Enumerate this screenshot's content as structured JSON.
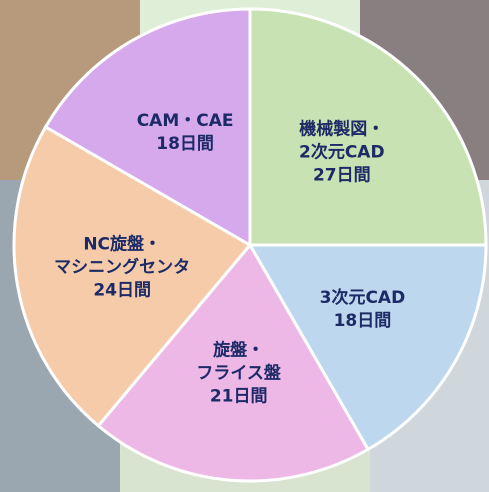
{
  "chart_data": {
    "type": "pie",
    "categories": [
      "機械製図・\n2次元CAD",
      "3次元CAD",
      "旋盤・\nフライス盤",
      "NC旋盤・\nマシニングセンタ",
      "CAM・CAE"
    ],
    "values": [
      27,
      18,
      21,
      24,
      18
    ],
    "value_labels": [
      "27日間",
      "18日間",
      "21日間",
      "24日間",
      "18日間"
    ],
    "colors": [
      "#c8e2b3",
      "#bdd8ee",
      "#eeb8e6",
      "#f6cba9",
      "#d6a8ec"
    ]
  }
}
